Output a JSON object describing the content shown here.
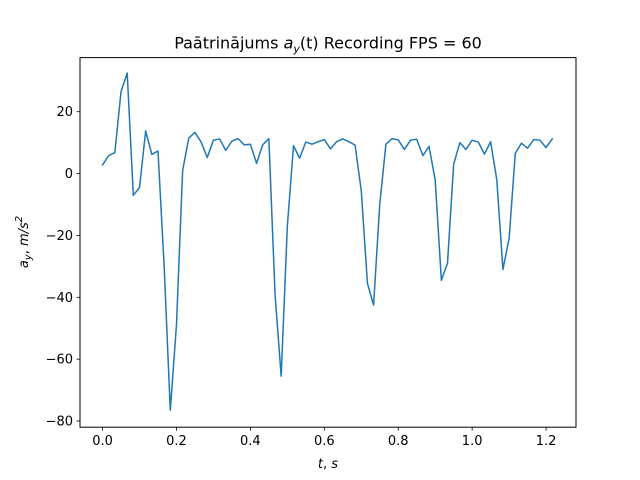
{
  "chart_data": {
    "type": "line",
    "title": "Paātrinājums a_y(t) Recording FPS = 60",
    "title_parts": {
      "prefix": "Paātrinājums ",
      "var": "a",
      "sub": "y",
      "arg": "(t)",
      "suffix": " Recording FPS = 60"
    },
    "xlabel": "t, s",
    "ylabel": "a_y, m/s^2",
    "xlabel_parts": {
      "var": "t",
      "sep": ", ",
      "unit": "s"
    },
    "ylabel_parts": {
      "var": "a",
      "sub": "y",
      "sep": ", ",
      "unit": "m/s",
      "exp": "2"
    },
    "xlim": [
      -0.061,
      1.281
    ],
    "ylim": [
      -82,
      37.5
    ],
    "xticks": [
      0.0,
      0.2,
      0.4,
      0.6,
      0.8,
      1.0,
      1.2
    ],
    "xtick_labels": [
      "0.0",
      "0.2",
      "0.4",
      "0.6",
      "0.8",
      "1.0",
      "1.2"
    ],
    "yticks": [
      -80,
      -60,
      -40,
      -20,
      0,
      20
    ],
    "ytick_labels": [
      "−80",
      "−60",
      "−40",
      "−20",
      "0",
      "20"
    ],
    "grid": false,
    "series": [
      {
        "color": "#1f77b4",
        "x": [
          0.0,
          0.0167,
          0.0333,
          0.05,
          0.0667,
          0.0833,
          0.1,
          0.1167,
          0.1333,
          0.15,
          0.1667,
          0.1833,
          0.2,
          0.2167,
          0.2333,
          0.25,
          0.2667,
          0.2833,
          0.3,
          0.3167,
          0.3333,
          0.35,
          0.3667,
          0.3833,
          0.4,
          0.4167,
          0.4333,
          0.45,
          0.4667,
          0.4833,
          0.5,
          0.5167,
          0.5333,
          0.55,
          0.5667,
          0.5833,
          0.6,
          0.6167,
          0.6333,
          0.65,
          0.6667,
          0.6833,
          0.7,
          0.7167,
          0.7333,
          0.75,
          0.7667,
          0.7833,
          0.8,
          0.8167,
          0.8333,
          0.85,
          0.8667,
          0.8833,
          0.9,
          0.9167,
          0.9333,
          0.95,
          0.9667,
          0.9833,
          1.0,
          1.0167,
          1.0333,
          1.05,
          1.0667,
          1.0833,
          1.1,
          1.1167,
          1.1333,
          1.15,
          1.1667,
          1.1833,
          1.2,
          1.2167
        ],
        "y": [
          2.8,
          5.8,
          6.8,
          26.5,
          32.5,
          -7,
          -4.5,
          13.8,
          6.2,
          7.3,
          -30,
          -76.5,
          -49,
          1,
          11.5,
          13.3,
          10.2,
          5.2,
          10.8,
          11.2,
          7.5,
          10.5,
          11.3,
          9.3,
          9.5,
          3.3,
          9.3,
          11.3,
          -39,
          -65.5,
          -17,
          9,
          5,
          10.2,
          9.5,
          10.3,
          11,
          8,
          10.3,
          11.2,
          10.3,
          9.2,
          -5.5,
          -35.5,
          -42.5,
          -10,
          9.5,
          11.3,
          10.9,
          7.8,
          10.8,
          11.1,
          5.8,
          8.8,
          -2,
          -34.5,
          -29,
          3,
          10,
          7.8,
          10.8,
          10.2,
          6.3,
          10.3,
          -2,
          -31,
          -21,
          6.5,
          9.8,
          8.2,
          11,
          10.8,
          8.4,
          11.2
        ]
      }
    ]
  }
}
